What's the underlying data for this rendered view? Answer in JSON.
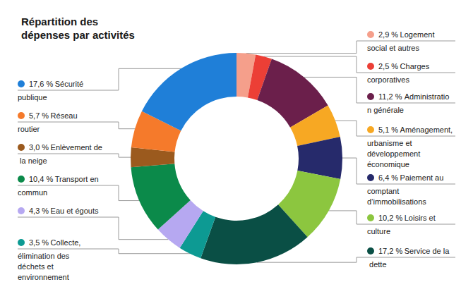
{
  "chart_data": {
    "type": "donut",
    "title": "Répartition des dépenses par activités",
    "categories": [
      "Logement social et autres",
      "Charges corporatives",
      "Administration générale",
      "Aménagement, urbanisme et développement économique",
      "Paiement au comptant d’immobilisations",
      "Loisirs et culture",
      "Service de la dette",
      "Collecte, élimination des déchets et environnement",
      "Eau et égouts",
      "Transport en commun",
      "Enlèvement de la neige",
      "Réseau routier",
      "Sécurité publique"
    ],
    "values": [
      2.9,
      2.5,
      11.2,
      5.1,
      6.4,
      10.2,
      17.2,
      3.5,
      4.3,
      10.4,
      3.0,
      5.7,
      17.6
    ],
    "value_labels": [
      "2,9 %",
      "2,5 %",
      "11,2 %",
      "5,1 %",
      "6,4 %",
      "10,2 %",
      "17,2 %",
      "3,5 %",
      "4,3 %",
      "10,4 %",
      "3,0 %",
      "5,7 %",
      "17,6 %"
    ],
    "colors": [
      "#f59f8b",
      "#ec3f36",
      "#6b1f4b",
      "#f7a823",
      "#262a6b",
      "#8cc63f",
      "#0a4f45",
      "#0d9a93",
      "#b6a8f1",
      "#0b8a4a",
      "#9b5a1e",
      "#f57a2b",
      "#1f7fd8"
    ],
    "data_labels": true
  }
}
